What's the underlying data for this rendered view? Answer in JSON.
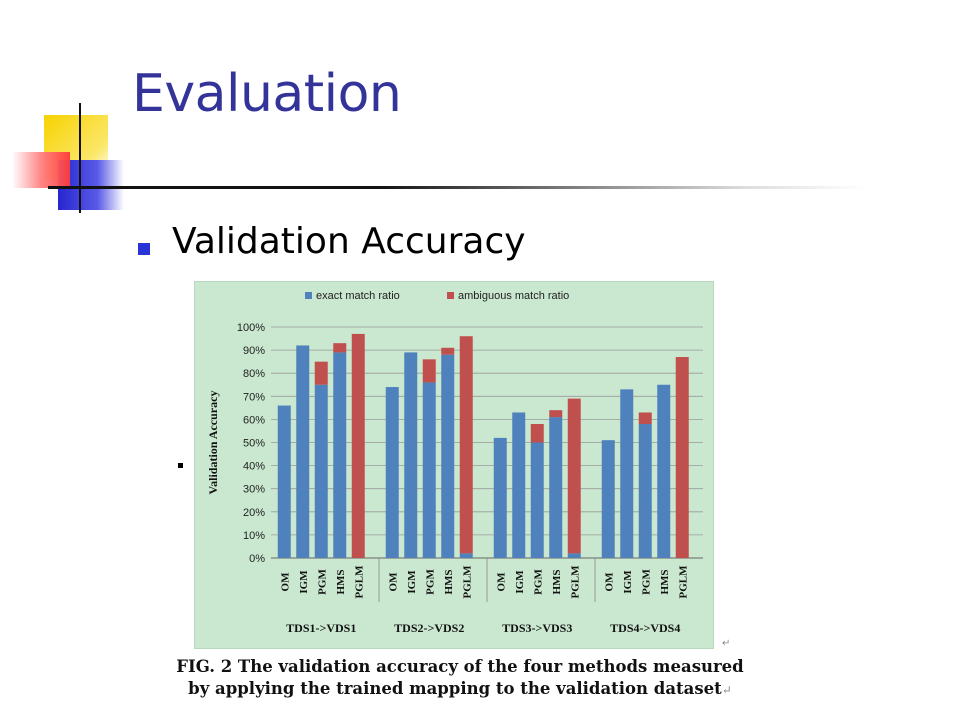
{
  "slide": {
    "title": "Evaluation",
    "bullet": "Validation Accuracy",
    "caption_line1": "FIG. 2 The validation accuracy of the four methods measured",
    "caption_line2": "by applying the trained mapping to the validation dataset",
    "caption_mark": "↵",
    "edge_mark": "↵"
  },
  "colors": {
    "title": "#33339a",
    "bullet": "#2a33d6",
    "chart_bg": "#c9e8cf",
    "exact": "#4f81bd",
    "ambiguous": "#c0504d"
  },
  "chart_data": {
    "type": "bar",
    "stacked": true,
    "ylabel": "Validation Accuracy",
    "xlabel": "",
    "title": "",
    "ylim": [
      0,
      100
    ],
    "yticks": [
      "0%",
      "10%",
      "20%",
      "30%",
      "40%",
      "50%",
      "60%",
      "70%",
      "80%",
      "90%",
      "100%"
    ],
    "grid": true,
    "legend_position": "top",
    "groups": [
      "TDS1->VDS1",
      "TDS2->VDS2",
      "TDS3->VDS3",
      "TDS4->VDS4"
    ],
    "methods": [
      "OM",
      "IGM",
      "PGM",
      "HMS",
      "PGLM"
    ],
    "series": [
      {
        "name": "exact match ratio",
        "color": "#4f81bd",
        "values": [
          [
            66,
            92,
            75,
            89,
            0
          ],
          [
            74,
            89,
            76,
            88,
            2
          ],
          [
            52,
            63,
            50,
            61,
            2
          ],
          [
            51,
            73,
            58,
            75,
            0
          ]
        ]
      },
      {
        "name": "ambiguous match ratio",
        "color": "#c0504d",
        "values": [
          [
            0,
            0,
            10,
            4,
            97
          ],
          [
            0,
            0,
            10,
            3,
            94
          ],
          [
            0,
            0,
            8,
            3,
            67
          ],
          [
            0,
            0,
            5,
            0,
            87
          ]
        ]
      }
    ]
  }
}
